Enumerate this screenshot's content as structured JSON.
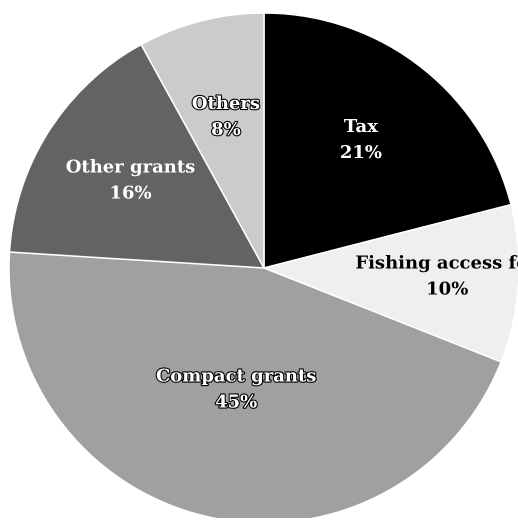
{
  "chart_data": {
    "type": "pie",
    "title": "",
    "slices": [
      {
        "label": "Tax",
        "value": 21,
        "value_text": "21%",
        "color": "#000000",
        "text_color": "#ffffff",
        "text_outline": false
      },
      {
        "label": "Fishing access fee",
        "value": 10,
        "value_text": "10%",
        "color": "#efefef",
        "text_color": "#000000",
        "text_outline": false
      },
      {
        "label": "Compact grants",
        "value": 45,
        "value_text": "45%",
        "color": "#a0a0a0",
        "text_color": "#ffffff",
        "text_outline": true
      },
      {
        "label": "Other grants",
        "value": 16,
        "value_text": "16%",
        "color": "#636363",
        "text_color": "#ffffff",
        "text_outline": false
      },
      {
        "label": "Others",
        "value": 8,
        "value_text": "8%",
        "color": "#cbcbcb",
        "text_color": "#ffffff",
        "text_outline": true
      }
    ],
    "start_angle": "12 o'clock",
    "direction": "clockwise",
    "legend": "none",
    "slice_border_color": "#ffffff"
  }
}
